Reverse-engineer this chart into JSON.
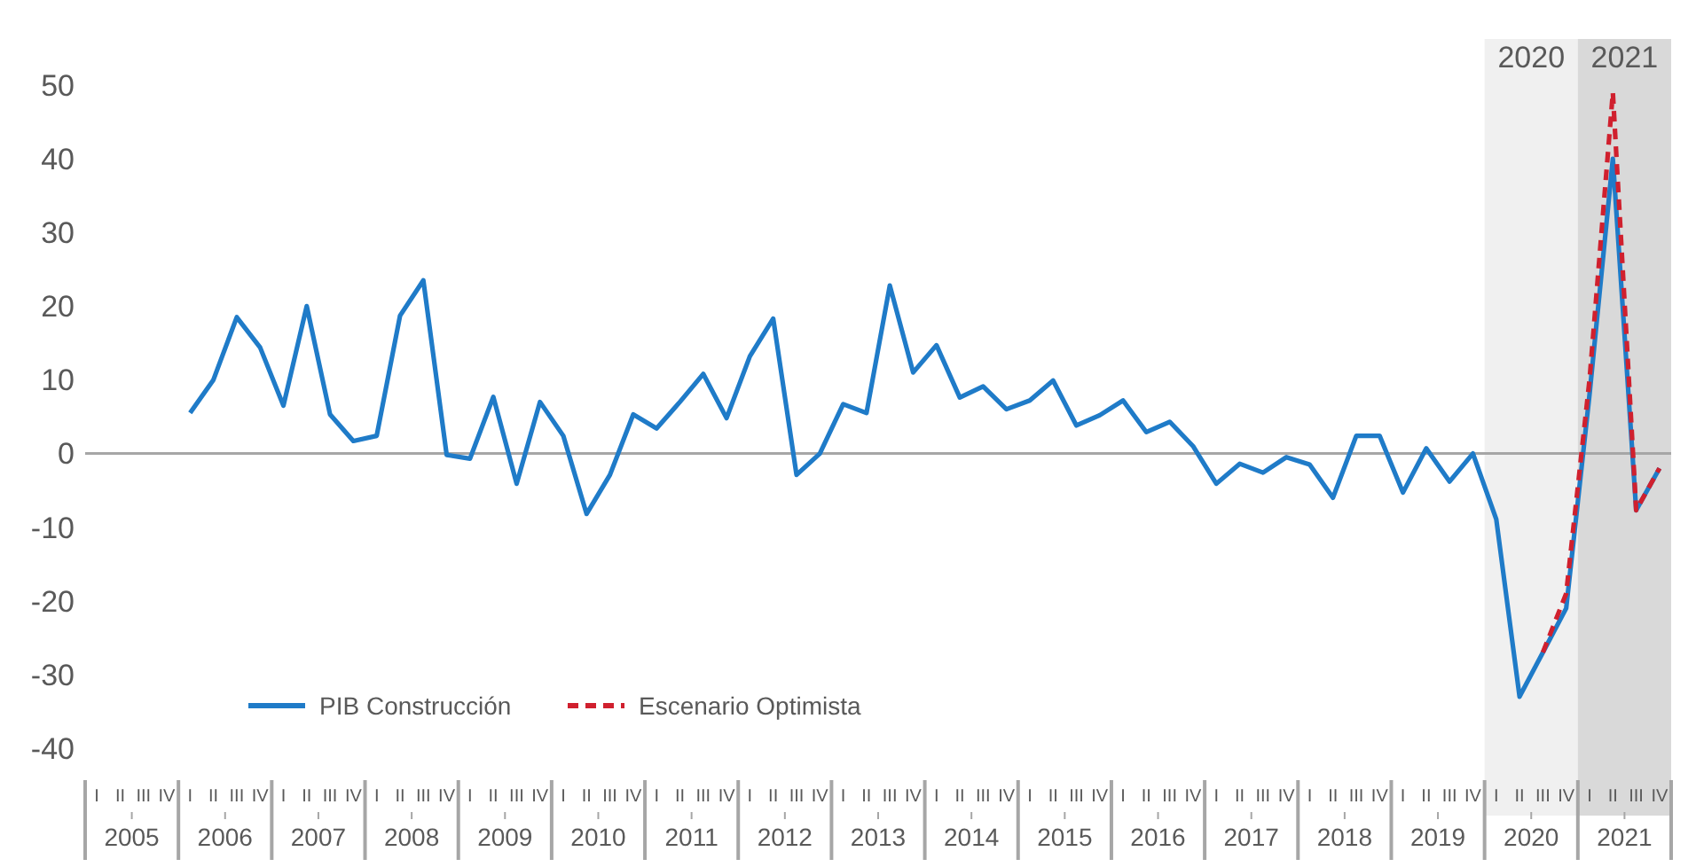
{
  "chart_data": {
    "type": "line",
    "series": [
      {
        "name": "PIB Construcción",
        "color": "#1f7bc8",
        "line_style": "solid",
        "x": [
          2005.625,
          2005.875,
          2006.125,
          2006.375,
          2006.625,
          2006.875,
          2007.125,
          2007.375,
          2007.625,
          2007.875,
          2008.125,
          2008.375,
          2008.625,
          2008.875,
          2009.125,
          2009.375,
          2009.625,
          2009.875,
          2010.125,
          2010.375,
          2010.625,
          2010.875,
          2011.125,
          2011.375,
          2011.625,
          2011.875,
          2012.125,
          2012.375,
          2012.625,
          2012.875,
          2013.125,
          2013.375,
          2013.625,
          2013.875,
          2014.125,
          2014.375,
          2014.625,
          2014.875,
          2015.125,
          2015.375,
          2015.625,
          2015.875,
          2016.125,
          2016.375,
          2016.625,
          2016.875,
          2017.125,
          2017.375,
          2017.625,
          2017.875,
          2018.125,
          2018.375,
          2018.625,
          2018.875,
          2019.125,
          2019.375,
          2019.625,
          2019.875,
          2020.125,
          2020.375,
          2020.625,
          2020.875,
          2021.125,
          2021.375
        ],
        "values": [
          5.5,
          10,
          18.5,
          14.4,
          6.5,
          20,
          5.3,
          1.7,
          2.4,
          18.7,
          23.5,
          -0.2,
          -0.7,
          7.7,
          -4.1,
          7,
          2.4,
          -8.2,
          -2.9,
          5.3,
          3.4,
          7,
          10.8,
          4.8,
          13.2,
          18.3,
          -2.9,
          0,
          6.7,
          5.5,
          22.8,
          11,
          14.7,
          7.6,
          9.1,
          6,
          7.2,
          9.9,
          3.8,
          5.2,
          7.2,
          2.9,
          4.3,
          1,
          -4.1,
          -1.4,
          -2.6,
          -0.5,
          -1.5,
          -6,
          2.4,
          2.4,
          -5.3,
          0.7,
          -3.8,
          0,
          -8.9,
          -33,
          -27,
          -21,
          8,
          40,
          -7.7,
          -2
        ]
      },
      {
        "name": "Escenario Optimista",
        "color": "#d0202e",
        "line_style": "dashed",
        "x": [
          2020.125,
          2020.375,
          2020.625,
          2020.875,
          2021.125,
          2021.375
        ],
        "values": [
          -27,
          -19,
          10,
          49,
          -7.7,
          -2
        ]
      }
    ],
    "xlim": [
      2004.5,
      2021.5
    ],
    "xticks": [
      2005,
      2006,
      2007,
      2008,
      2009,
      2010,
      2011,
      2012,
      2013,
      2014,
      2015,
      2016,
      2017,
      2018,
      2019,
      2020,
      2021
    ],
    "ylim": [
      -40,
      50
    ],
    "yticks": [
      -40,
      -30,
      -20,
      -10,
      0,
      10,
      20,
      30,
      40,
      50
    ],
    "ref_lines": [
      {
        "axis": "y",
        "value": 0,
        "color": "#a6a6a6"
      }
    ],
    "bands": [
      {
        "axis": "x",
        "from": 2019.5,
        "to": 2020.5,
        "label": "2020",
        "color": "#f0f0f0"
      },
      {
        "axis": "x",
        "from": 2020.5,
        "to": 2021.5,
        "label": "2021",
        "color": "#d9d9d9"
      }
    ],
    "annotations": [
      "I",
      "II",
      "III",
      "IV",
      "I",
      "II",
      "III",
      "IV",
      "I",
      "II",
      "III",
      "IV",
      "I",
      "II",
      "III",
      "IV",
      "I",
      "II",
      "III",
      "IV",
      "I",
      "II",
      "III",
      "IV",
      "I",
      "II",
      "III",
      "IV",
      "I",
      "II",
      "III",
      "IV",
      "I",
      "II",
      "III",
      "IV",
      "I",
      "II",
      "III",
      "IV",
      "I",
      "II",
      "III",
      "IV",
      "I",
      "II",
      "III",
      "IV",
      "I",
      "II",
      "III",
      "IV",
      "I",
      "II",
      "III",
      "IV",
      "I",
      "II",
      "III",
      "IV",
      "I",
      "II",
      "III",
      "IV",
      "I",
      "II",
      "III",
      "IV"
    ],
    "grid": false,
    "legend": "bottom left",
    "marker": "none"
  }
}
